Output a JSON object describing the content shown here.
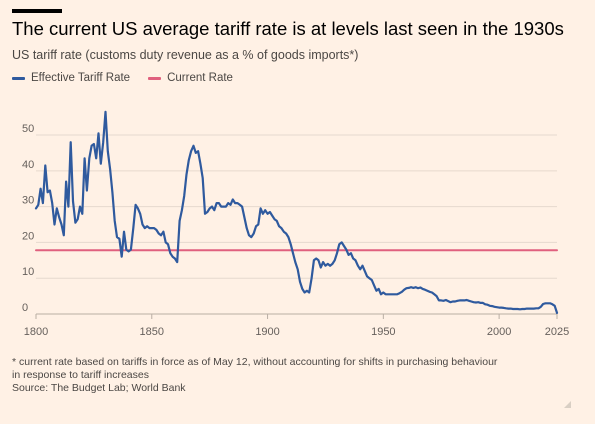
{
  "title": "The current US average tariff rate is at levels last seen in the 1930s",
  "subtitle": "US tariff rate (customs duty revenue as a % of goods imports*)",
  "footnotes": {
    "line1": "* current rate based on tariffs in force as of May 12, without accounting for shifts in purchasing behaviour",
    "line2": "in response to tariff increases",
    "source": "Source: The Budget Lab; World Bank"
  },
  "chart_data": {
    "type": "line",
    "title": "The current US average tariff rate is at levels last seen in the 1930s",
    "ylabel": "US tariff rate (customs duty revenue as a % of goods imports*)",
    "xlim": [
      1800,
      2025
    ],
    "ylim": [
      0,
      57
    ],
    "x_ticks": [
      1800,
      1850,
      1900,
      1950,
      2000,
      2025
    ],
    "y_ticks": [
      0,
      10,
      20,
      30,
      40,
      50
    ],
    "grid": "horizontal",
    "legend_position": "top-left",
    "series": [
      {
        "name": "Effective Tariff Rate",
        "color": "#2f5a9e",
        "points": [
          [
            1800,
            29.5
          ],
          [
            1801,
            30.5
          ],
          [
            1802,
            35
          ],
          [
            1803,
            31
          ],
          [
            1804,
            41.5
          ],
          [
            1805,
            34
          ],
          [
            1806,
            34.5
          ],
          [
            1807,
            31
          ],
          [
            1808,
            25
          ],
          [
            1809,
            29.5
          ],
          [
            1810,
            27
          ],
          [
            1811,
            25
          ],
          [
            1812,
            22
          ],
          [
            1813,
            37
          ],
          [
            1814,
            30
          ],
          [
            1815,
            48
          ],
          [
            1816,
            31.5
          ],
          [
            1817,
            25.5
          ],
          [
            1818,
            26.5
          ],
          [
            1819,
            30
          ],
          [
            1820,
            28
          ],
          [
            1821,
            43.5
          ],
          [
            1822,
            34.5
          ],
          [
            1823,
            43.5
          ],
          [
            1824,
            47
          ],
          [
            1825,
            47.5
          ],
          [
            1826,
            43.5
          ],
          [
            1827,
            50.5
          ],
          [
            1828,
            42
          ],
          [
            1829,
            48
          ],
          [
            1830,
            56.5
          ],
          [
            1831,
            45.5
          ],
          [
            1832,
            40.5
          ],
          [
            1833,
            34
          ],
          [
            1834,
            26
          ],
          [
            1835,
            21.5
          ],
          [
            1836,
            21
          ],
          [
            1837,
            16
          ],
          [
            1838,
            23
          ],
          [
            1839,
            18
          ],
          [
            1840,
            17.5
          ],
          [
            1841,
            18
          ],
          [
            1842,
            24
          ],
          [
            1843,
            30.5
          ],
          [
            1844,
            29.5
          ],
          [
            1845,
            28
          ],
          [
            1846,
            25
          ],
          [
            1847,
            24
          ],
          [
            1848,
            24.5
          ],
          [
            1849,
            24
          ],
          [
            1850,
            24
          ],
          [
            1851,
            24
          ],
          [
            1852,
            23.5
          ],
          [
            1853,
            22.5
          ],
          [
            1854,
            22
          ],
          [
            1855,
            23
          ],
          [
            1856,
            20
          ],
          [
            1857,
            19.5
          ],
          [
            1858,
            17
          ],
          [
            1859,
            16
          ],
          [
            1860,
            15.5
          ],
          [
            1861,
            14.5
          ],
          [
            1862,
            26
          ],
          [
            1863,
            29
          ],
          [
            1864,
            33
          ],
          [
            1865,
            39
          ],
          [
            1866,
            43
          ],
          [
            1867,
            45.5
          ],
          [
            1868,
            47
          ],
          [
            1869,
            45
          ],
          [
            1870,
            45.5
          ],
          [
            1871,
            42
          ],
          [
            1872,
            38
          ],
          [
            1873,
            28
          ],
          [
            1874,
            28.5
          ],
          [
            1875,
            29.5
          ],
          [
            1876,
            30
          ],
          [
            1877,
            29
          ],
          [
            1878,
            31
          ],
          [
            1879,
            31
          ],
          [
            1880,
            30
          ],
          [
            1881,
            30
          ],
          [
            1882,
            30
          ],
          [
            1883,
            31
          ],
          [
            1884,
            30.5
          ],
          [
            1885,
            32
          ],
          [
            1886,
            31
          ],
          [
            1887,
            31
          ],
          [
            1888,
            30.5
          ],
          [
            1889,
            30
          ],
          [
            1890,
            27
          ],
          [
            1891,
            24
          ],
          [
            1892,
            22
          ],
          [
            1893,
            21.5
          ],
          [
            1894,
            22.5
          ],
          [
            1895,
            24.5
          ],
          [
            1896,
            25
          ],
          [
            1897,
            29.5
          ],
          [
            1898,
            28
          ],
          [
            1899,
            29
          ],
          [
            1900,
            28
          ],
          [
            1901,
            28.5
          ],
          [
            1902,
            27.5
          ],
          [
            1903,
            26.5
          ],
          [
            1904,
            26
          ],
          [
            1905,
            24.5
          ],
          [
            1906,
            24
          ],
          [
            1907,
            23
          ],
          [
            1908,
            22.5
          ],
          [
            1909,
            21.5
          ],
          [
            1910,
            19.5
          ],
          [
            1911,
            17
          ],
          [
            1912,
            14.5
          ],
          [
            1913,
            12.5
          ],
          [
            1914,
            9
          ],
          [
            1915,
            7
          ],
          [
            1916,
            6
          ],
          [
            1917,
            6.5
          ],
          [
            1918,
            6
          ],
          [
            1919,
            10
          ],
          [
            1920,
            15
          ],
          [
            1921,
            15.5
          ],
          [
            1922,
            15
          ],
          [
            1923,
            13
          ],
          [
            1924,
            14.5
          ],
          [
            1925,
            13.5
          ],
          [
            1926,
            14
          ],
          [
            1927,
            13.5
          ],
          [
            1928,
            14
          ],
          [
            1929,
            15
          ],
          [
            1930,
            17
          ],
          [
            1931,
            19.5
          ],
          [
            1932,
            20
          ],
          [
            1933,
            19
          ],
          [
            1934,
            18
          ],
          [
            1935,
            16.5
          ],
          [
            1936,
            17
          ],
          [
            1937,
            15.5
          ],
          [
            1938,
            15
          ],
          [
            1939,
            13.5
          ],
          [
            1940,
            12.5
          ],
          [
            1941,
            13.5
          ],
          [
            1942,
            12
          ],
          [
            1943,
            10.5
          ],
          [
            1944,
            10
          ],
          [
            1945,
            9.5
          ],
          [
            1946,
            8
          ],
          [
            1947,
            6.5
          ],
          [
            1948,
            7
          ],
          [
            1949,
            5.5
          ],
          [
            1950,
            6
          ],
          [
            1951,
            5.5
          ],
          [
            1952,
            5.5
          ],
          [
            1953,
            5.5
          ],
          [
            1954,
            5.5
          ],
          [
            1955,
            5.5
          ],
          [
            1956,
            5.5
          ],
          [
            1957,
            5.8
          ],
          [
            1958,
            6.2
          ],
          [
            1959,
            6.8
          ],
          [
            1960,
            7.2
          ],
          [
            1961,
            7.3
          ],
          [
            1962,
            7.5
          ],
          [
            1963,
            7.3
          ],
          [
            1964,
            7.5
          ],
          [
            1965,
            7.2
          ],
          [
            1966,
            7.4
          ],
          [
            1967,
            7
          ],
          [
            1968,
            6.8
          ],
          [
            1969,
            6.5
          ],
          [
            1970,
            6.2
          ],
          [
            1971,
            6
          ],
          [
            1972,
            5.5
          ],
          [
            1973,
            5
          ],
          [
            1974,
            3.8
          ],
          [
            1975,
            3.8
          ],
          [
            1976,
            3.7
          ],
          [
            1977,
            3.9
          ],
          [
            1978,
            3.6
          ],
          [
            1979,
            3.3
          ],
          [
            1980,
            3.5
          ],
          [
            1981,
            3.5
          ],
          [
            1982,
            3.7
          ],
          [
            1983,
            3.8
          ],
          [
            1984,
            3.8
          ],
          [
            1985,
            3.8
          ],
          [
            1986,
            3.9
          ],
          [
            1987,
            3.7
          ],
          [
            1988,
            3.5
          ],
          [
            1989,
            3.3
          ],
          [
            1990,
            3.2
          ],
          [
            1991,
            3.3
          ],
          [
            1992,
            3.1
          ],
          [
            1993,
            3.1
          ],
          [
            1994,
            2.7
          ],
          [
            1995,
            2.6
          ],
          [
            1996,
            2.3
          ],
          [
            1997,
            2.2
          ],
          [
            1998,
            2
          ],
          [
            1999,
            1.9
          ],
          [
            2000,
            1.8
          ],
          [
            2001,
            1.8
          ],
          [
            2002,
            1.7
          ],
          [
            2003,
            1.6
          ],
          [
            2004,
            1.5
          ],
          [
            2005,
            1.5
          ],
          [
            2006,
            1.4
          ],
          [
            2007,
            1.4
          ],
          [
            2008,
            1.4
          ],
          [
            2009,
            1.3
          ],
          [
            2010,
            1.4
          ],
          [
            2011,
            1.4
          ],
          [
            2012,
            1.5
          ],
          [
            2013,
            1.5
          ],
          [
            2014,
            1.5
          ],
          [
            2015,
            1.5
          ],
          [
            2016,
            1.6
          ],
          [
            2017,
            1.6
          ],
          [
            2018,
            2
          ],
          [
            2019,
            2.8
          ],
          [
            2020,
            3
          ],
          [
            2021,
            3
          ],
          [
            2022,
            3
          ],
          [
            2023,
            2.7
          ],
          [
            2024,
            2.3
          ],
          [
            2025,
            0.3
          ]
        ]
      },
      {
        "name": "Current Rate",
        "color": "#e0607e",
        "points": [
          [
            1800,
            17.8
          ],
          [
            2025,
            17.8
          ]
        ]
      }
    ]
  }
}
